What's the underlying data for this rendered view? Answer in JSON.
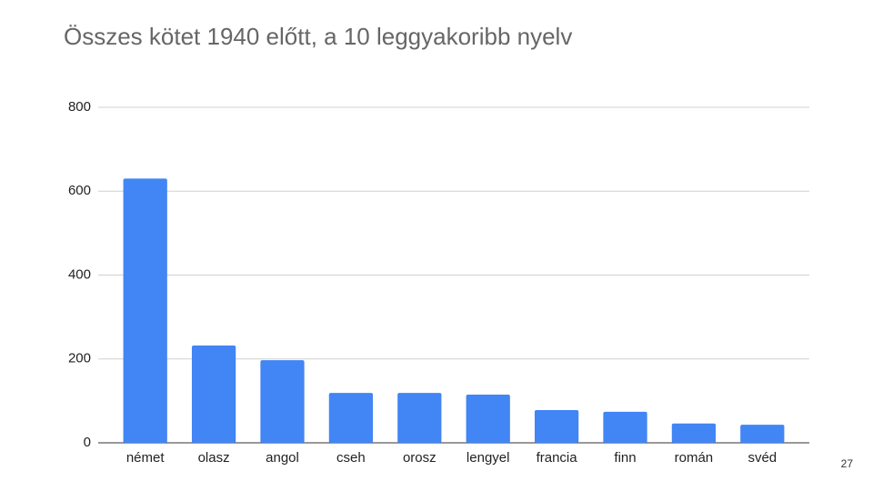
{
  "chart_data": {
    "type": "bar",
    "title": "Összes kötet 1940 előtt, a 10 leggyakoribb nyelv",
    "categories": [
      "német",
      "olasz",
      "angol",
      "cseh",
      "orosz",
      "lengyel",
      "francia",
      "finn",
      "román",
      "svéd"
    ],
    "values": [
      630,
      232,
      197,
      119,
      119,
      115,
      78,
      74,
      46,
      43
    ],
    "color": "#4285f4",
    "ylim": [
      0,
      800
    ],
    "yticks": [
      0,
      200,
      400,
      600,
      800
    ],
    "grid": true
  },
  "slide": {
    "page_number": "27"
  }
}
